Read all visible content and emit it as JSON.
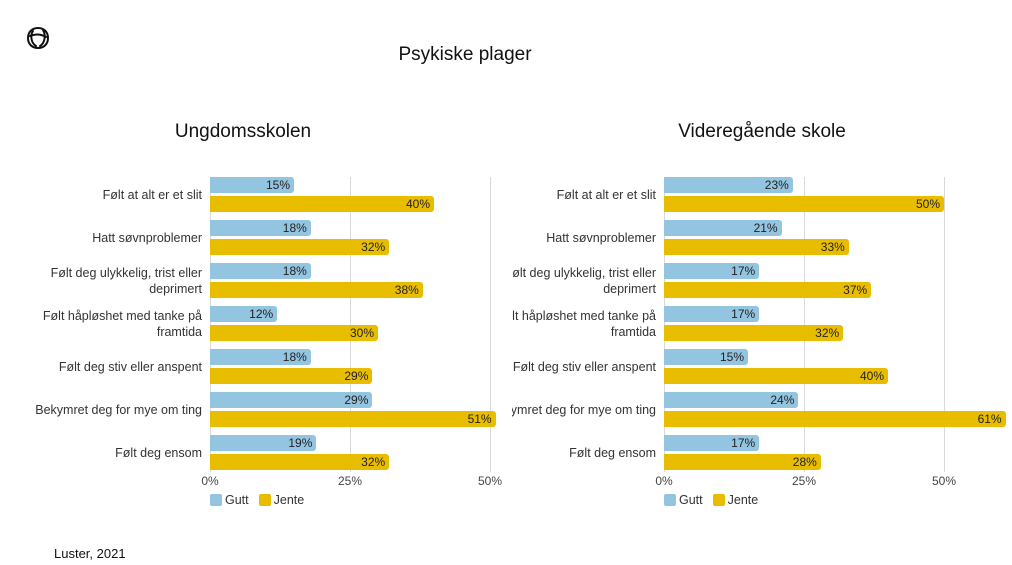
{
  "title": "Psykiske plager",
  "footer": "Luster, 2021",
  "chart_data": [
    {
      "type": "bar",
      "orientation": "horizontal",
      "title": "Ungdomsskolen",
      "categories": [
        "Følt at alt er et slit",
        "Hatt søvnproblemer",
        "Følt deg ulykkelig, trist eller deprimert",
        "Følt håpløshet med tanke på framtida",
        "Følt deg stiv eller anspent",
        "Bekymret deg for mye om ting",
        "Følt deg ensom"
      ],
      "series": [
        {
          "name": "Gutt",
          "color": "#93c4e0",
          "values": [
            15,
            18,
            18,
            12,
            18,
            29,
            19
          ],
          "value_labels": [
            "15%",
            "18%",
            "18%",
            "12%",
            "18%",
            "29%",
            "19%"
          ]
        },
        {
          "name": "Jente",
          "color": "#e8bd00",
          "values": [
            40,
            32,
            38,
            30,
            29,
            51,
            32
          ],
          "value_labels": [
            "40%",
            "32%",
            "38%",
            "30%",
            "29%",
            "51%",
            "32%"
          ]
        }
      ],
      "xlim": [
        0,
        50
      ],
      "xticks": [
        {
          "value": 0,
          "label": "0%"
        },
        {
          "value": 25,
          "label": "25%"
        },
        {
          "value": 50,
          "label": "50%"
        }
      ],
      "grid": true,
      "legend": "bottom-left"
    },
    {
      "type": "bar",
      "orientation": "horizontal",
      "title": "Videregående skole",
      "categories": [
        "Følt at alt er et slit",
        "Hatt søvnproblemer",
        "Følt deg ulykkelig, trist eller deprimert",
        "Følt håpløshet med tanke på framtida",
        "Følt deg stiv eller anspent",
        "Bekymret deg for mye om ting",
        "Følt deg ensom"
      ],
      "series": [
        {
          "name": "Gutt",
          "color": "#93c4e0",
          "values": [
            23,
            21,
            17,
            17,
            15,
            24,
            17
          ],
          "value_labels": [
            "23%",
            "21%",
            "17%",
            "17%",
            "15%",
            "24%",
            "17%"
          ]
        },
        {
          "name": "Jente",
          "color": "#e8bd00",
          "values": [
            50,
            33,
            37,
            32,
            40,
            61,
            28
          ],
          "value_labels": [
            "50%",
            "33%",
            "37%",
            "32%",
            "40%",
            "61%",
            "28%"
          ]
        }
      ],
      "xlim": [
        0,
        50
      ],
      "xticks": [
        {
          "value": 0,
          "label": "0%"
        },
        {
          "value": 25,
          "label": "25%"
        },
        {
          "value": 50,
          "label": "50%"
        }
      ],
      "grid": true,
      "legend": "bottom-left"
    }
  ]
}
